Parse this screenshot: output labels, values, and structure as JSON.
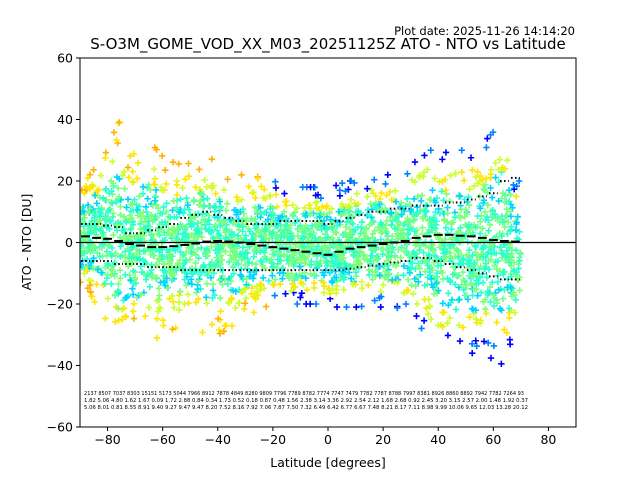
{
  "chart_data": {
    "type": "scatter",
    "title": "S-O3M_GOME_VOD_XX_M03_20251125Z ATO - NTO vs Latitude",
    "subtitle": "Plot date: 2025-11-26 14:14:20",
    "xlabel": "Latitude [degrees]",
    "ylabel": "ATO - NTO [DU]",
    "xlim": [
      -90,
      90
    ],
    "ylim": [
      -60,
      60
    ],
    "x_ticks": [
      "−80",
      "−60",
      "−40",
      "−20",
      "0",
      "20",
      "40",
      "60",
      "80"
    ],
    "y_ticks": [
      "−60",
      "−40",
      "−20",
      "0",
      "20",
      "40",
      "60"
    ],
    "x_tick_values": [
      -80,
      -60,
      -40,
      -20,
      0,
      20,
      40,
      60,
      80
    ],
    "y_tick_values": [
      -60,
      -40,
      -20,
      0,
      20,
      40,
      60
    ],
    "grid": false,
    "legend": "none",
    "zero_line": 0,
    "colormap": [
      "#0000ff",
      "#0080ff",
      "#00d4ff",
      "#2affd0",
      "#7cff7a",
      "#ccff2e",
      "#ffe600",
      "#ffb000"
    ],
    "envelope": {
      "latitudes": [
        -88,
        -84,
        -80,
        -76,
        -72,
        -68,
        -64,
        -60,
        -56,
        -52,
        -48,
        -44,
        -40,
        -36,
        -32,
        -28,
        -24,
        -20,
        -16,
        -12,
        -8,
        -4,
        0,
        4,
        8,
        12,
        16,
        20,
        24,
        28,
        32,
        36,
        40,
        44,
        48,
        52,
        56,
        60,
        64,
        68
      ],
      "upper": [
        20,
        25,
        30,
        40,
        28,
        30,
        32,
        28,
        26,
        25,
        27,
        28,
        26,
        24,
        22,
        22,
        21,
        20,
        19,
        18,
        18,
        18,
        18,
        19,
        20,
        21,
        22,
        22,
        22,
        24,
        27,
        30,
        30,
        29,
        30,
        30,
        32,
        36,
        40,
        20
      ],
      "lower": [
        -16,
        -20,
        -26,
        -38,
        -30,
        -30,
        -32,
        -30,
        -28,
        -27,
        -28,
        -30,
        -30,
        -28,
        -25,
        -23,
        -22,
        -21,
        -20,
        -20,
        -20,
        -20,
        -21,
        -21,
        -21,
        -21,
        -21,
        -21,
        -21,
        -22,
        -26,
        -30,
        -34,
        -36,
        -36,
        -36,
        -36,
        -38,
        -40,
        -30
      ]
    },
    "mean_line": {
      "latitudes": [
        -88,
        -84,
        -80,
        -76,
        -72,
        -68,
        -64,
        -60,
        -56,
        -52,
        -48,
        -44,
        -40,
        -36,
        -32,
        -28,
        -24,
        -20,
        -16,
        -12,
        -8,
        -4,
        0,
        4,
        8,
        12,
        16,
        20,
        24,
        28,
        32,
        36,
        40,
        44,
        48,
        52,
        56,
        60,
        64,
        68
      ],
      "values": [
        2,
        1.5,
        1.2,
        0.5,
        -0.5,
        -1,
        -1.5,
        -1.5,
        -1.2,
        -0.8,
        -0.3,
        0.3,
        0.5,
        0.3,
        0,
        -0.5,
        -1,
        -1.5,
        -2,
        -2.5,
        -3,
        -3.5,
        -4,
        -3,
        -2,
        -1.5,
        -1,
        -0.5,
        0,
        0.5,
        1.5,
        2,
        2.5,
        2.5,
        2.2,
        2,
        1.5,
        0.8,
        0.5,
        0.3
      ]
    },
    "upper_sigma": {
      "latitudes": [
        -88,
        -84,
        -80,
        -76,
        -72,
        -68,
        -64,
        -60,
        -56,
        -52,
        -48,
        -44,
        -40,
        -36,
        -32,
        -28,
        -24,
        -20,
        -16,
        -12,
        -8,
        -4,
        0,
        4,
        8,
        12,
        16,
        20,
        24,
        28,
        32,
        36,
        40,
        44,
        48,
        52,
        56,
        60,
        64,
        68
      ],
      "values": [
        6,
        6,
        5.5,
        5,
        3,
        3,
        4,
        5,
        6,
        8,
        9,
        10,
        9,
        8,
        7,
        6,
        6,
        6,
        7,
        7,
        7,
        7,
        6,
        7,
        8,
        9,
        10,
        10,
        11,
        11,
        12,
        12,
        12,
        13,
        13,
        14,
        15,
        16,
        20,
        21
      ]
    },
    "lower_sigma": {
      "latitudes": [
        -88,
        -84,
        -80,
        -76,
        -72,
        -68,
        -64,
        -60,
        -56,
        -52,
        -48,
        -44,
        -40,
        -36,
        -32,
        -28,
        -24,
        -20,
        -16,
        -12,
        -8,
        -4,
        0,
        4,
        8,
        12,
        16,
        20,
        24,
        28,
        32,
        36,
        40,
        44,
        48,
        52,
        56,
        60,
        64,
        68
      ],
      "values": [
        -6,
        -6,
        -6,
        -7,
        -7,
        -7,
        -8,
        -8,
        -8,
        -9,
        -9,
        -9,
        -9,
        -9,
        -9,
        -9,
        -9,
        -9,
        -9,
        -9,
        -9,
        -9,
        -9,
        -9,
        -8.5,
        -8,
        -7.5,
        -7,
        -6.5,
        -6,
        -5,
        -5,
        -6,
        -7,
        -8,
        -9,
        -10,
        -11,
        -12,
        -12
      ]
    },
    "stats": {
      "row1": "2137 8507 7037 8303 15151 5173 5044 7966 8912 7878 4849 8280 9809 7796 7789 8782 7774 7747 7479 7782 7787 8788 7997 8381 8926 8860 8892 7942 7782 7264 93",
      "row2": "1.82 5.06 4.80 1.62 1.67 0.09 1.72 2.88 0.84 0.34 1.73 0.52 0.18 0.87 0.48 1.56 2.38 3.14 3.36 2.92 2.54 2.12 1.68 2.68 0.92 2.45 3.20 3.15 2.57 2.00 1.48 1.92 0.37",
      "row3": "5.06 8.01 0.81 8.55 8.91 9.40 9.27 9.47 9.47 8.20 7.52 8.16 7.92 7.06 7.87 7.50 7.32 6.49 6.42 6.77 6.67 7.48 8.21 8.17 7.11 8.98 9.99 10.06 9.65 12.03 13.28 20.12"
    }
  }
}
